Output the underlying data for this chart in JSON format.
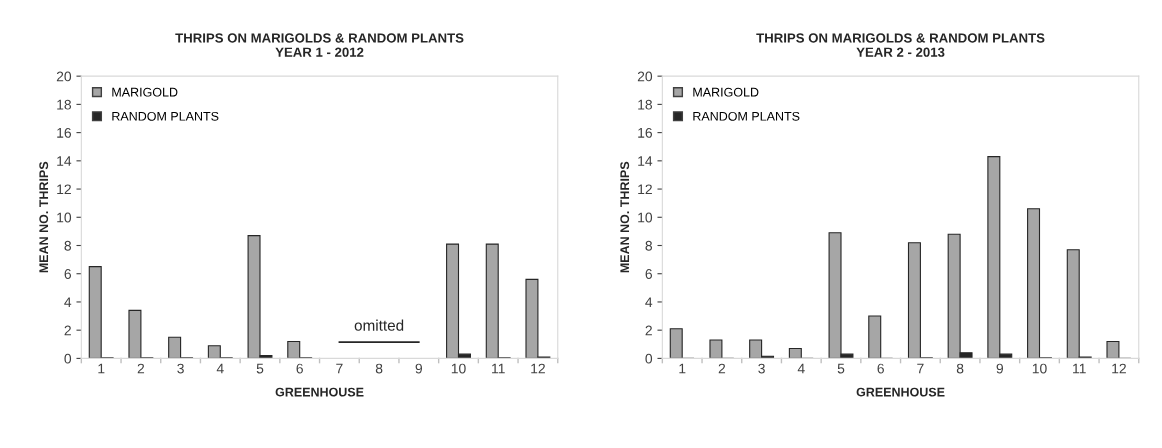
{
  "chart_data": [
    {
      "type": "bar",
      "title": "THRIPS ON MARIGOLDS & RANDOM PLANTS\nYEAR 1 - 2012",
      "xlabel": "GREENHOUSE",
      "ylabel": "MEAN NO. THRIPS",
      "categories": [
        "1",
        "2",
        "3",
        "4",
        "5",
        "6",
        "7",
        "8",
        "9",
        "10",
        "11",
        "12"
      ],
      "series": [
        {
          "name": "MARIGOLD",
          "color": "#a6a6a6",
          "values": [
            6.5,
            3.4,
            1.5,
            0.9,
            8.7,
            1.2,
            null,
            null,
            null,
            8.1,
            8.1,
            5.6
          ]
        },
        {
          "name": "RANDOM PLANTS",
          "color": "#262626",
          "values": [
            0.05,
            0.05,
            0.05,
            0.05,
            0.2,
            0.05,
            null,
            null,
            null,
            0.3,
            0.05,
            0.1
          ]
        },
        {
          "type": "line",
          "color": "#262626",
          "values": [
            null,
            null,
            null,
            null,
            null,
            null,
            1.15,
            1.15,
            1.15,
            null,
            null,
            null
          ]
        }
      ],
      "annotations": [
        {
          "text": "omitted",
          "x": "8",
          "y": 1.15
        }
      ],
      "ylim": [
        0,
        20
      ],
      "yticks": [
        0,
        2,
        4,
        6,
        8,
        10,
        12,
        14,
        16,
        18,
        20
      ],
      "grid": false,
      "legend": "top left"
    },
    {
      "type": "bar",
      "title": "THRIPS ON MARIGOLDS & RANDOM PLANTS\nYEAR 2 - 2013",
      "xlabel": "GREENHOUSE",
      "ylabel": "MEAN NO. THRIPS",
      "categories": [
        "1",
        "2",
        "3",
        "4",
        "5",
        "6",
        "7",
        "8",
        "9",
        "10",
        "11",
        "12"
      ],
      "series": [
        {
          "name": "MARIGOLD",
          "color": "#a6a6a6",
          "values": [
            2.1,
            1.3,
            1.3,
            0.7,
            8.9,
            3.0,
            8.2,
            8.8,
            14.3,
            10.6,
            7.7,
            1.2
          ]
        },
        {
          "name": "RANDOM PLANTS",
          "color": "#262626",
          "values": [
            0,
            0,
            0.15,
            0,
            0.3,
            0,
            0.05,
            0.4,
            0.3,
            0.05,
            0.1,
            0
          ]
        }
      ],
      "ylim": [
        0,
        20
      ],
      "yticks": [
        0,
        2,
        4,
        6,
        8,
        10,
        12,
        14,
        16,
        18,
        20
      ],
      "grid": false,
      "legend": "top left"
    }
  ]
}
